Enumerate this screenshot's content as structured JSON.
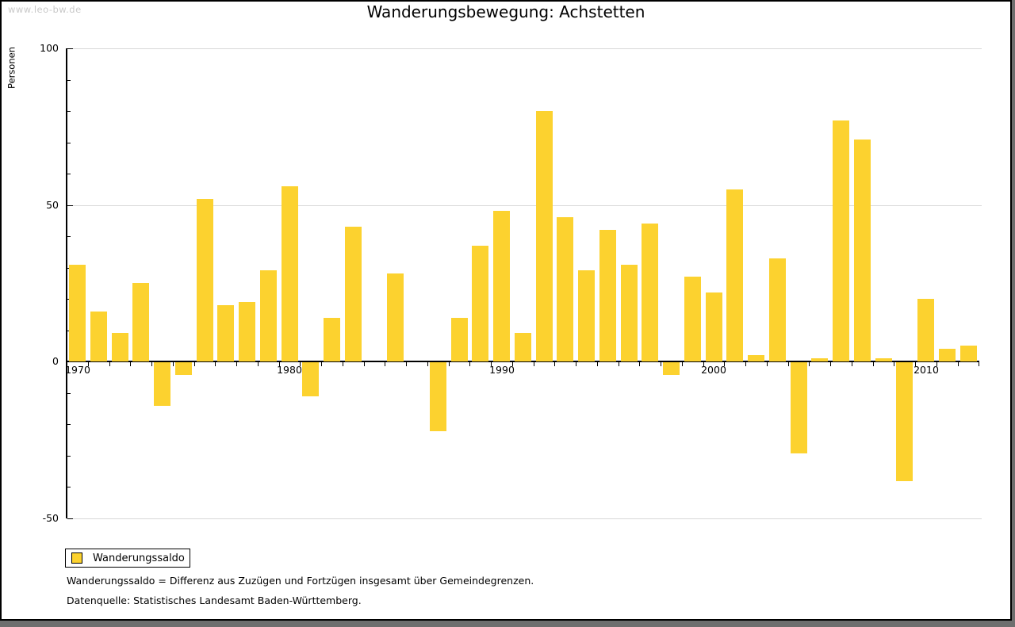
{
  "watermark": "www.leo-bw.de",
  "title": "Wanderungsbewegung: Achstetten",
  "chart_data": {
    "type": "bar",
    "title": "Wanderungsbewegung: Achstetten",
    "ylabel": "Personen",
    "series_name": "Wanderungssaldo",
    "x": [
      1970,
      1971,
      1972,
      1973,
      1974,
      1975,
      1976,
      1977,
      1978,
      1979,
      1980,
      1981,
      1982,
      1983,
      1984,
      1985,
      1986,
      1987,
      1988,
      1989,
      1990,
      1991,
      1992,
      1993,
      1994,
      1995,
      1996,
      1997,
      1998,
      1999,
      2000,
      2001,
      2002,
      2003,
      2004,
      2005,
      2006,
      2007,
      2008,
      2009,
      2010,
      2011,
      2012
    ],
    "values": [
      31,
      16,
      9,
      25,
      -14,
      -4,
      52,
      18,
      19,
      29,
      56,
      -11,
      14,
      43,
      0,
      28,
      0,
      -22,
      14,
      37,
      48,
      9,
      80,
      46,
      29,
      42,
      31,
      44,
      -4,
      27,
      22,
      55,
      2,
      33,
      -29,
      1,
      77,
      71,
      1,
      -38,
      20,
      4,
      5
    ],
    "ylim": [
      -50,
      100
    ],
    "ytick_major": [
      100,
      50,
      0,
      -50
    ],
    "ytick_minor_step": 10,
    "grid_values": [
      100,
      50,
      -50
    ],
    "xtick_labels": [
      1970,
      1980,
      1990,
      2000,
      2010
    ],
    "bar_color": "#FCD22F",
    "grid_color": "#d8d8d8",
    "legend_position": "bottom-left"
  },
  "legend": {
    "label": "Wanderungssaldo",
    "swatch_color": "#FCD22F"
  },
  "footnotes": {
    "definition": "Wanderungssaldo = Differenz aus Zuzügen und Fortzügen insgesamt über Gemeindegrenzen.",
    "source": "Datenquelle: Statistisches Landesamt Baden-Württemberg."
  }
}
